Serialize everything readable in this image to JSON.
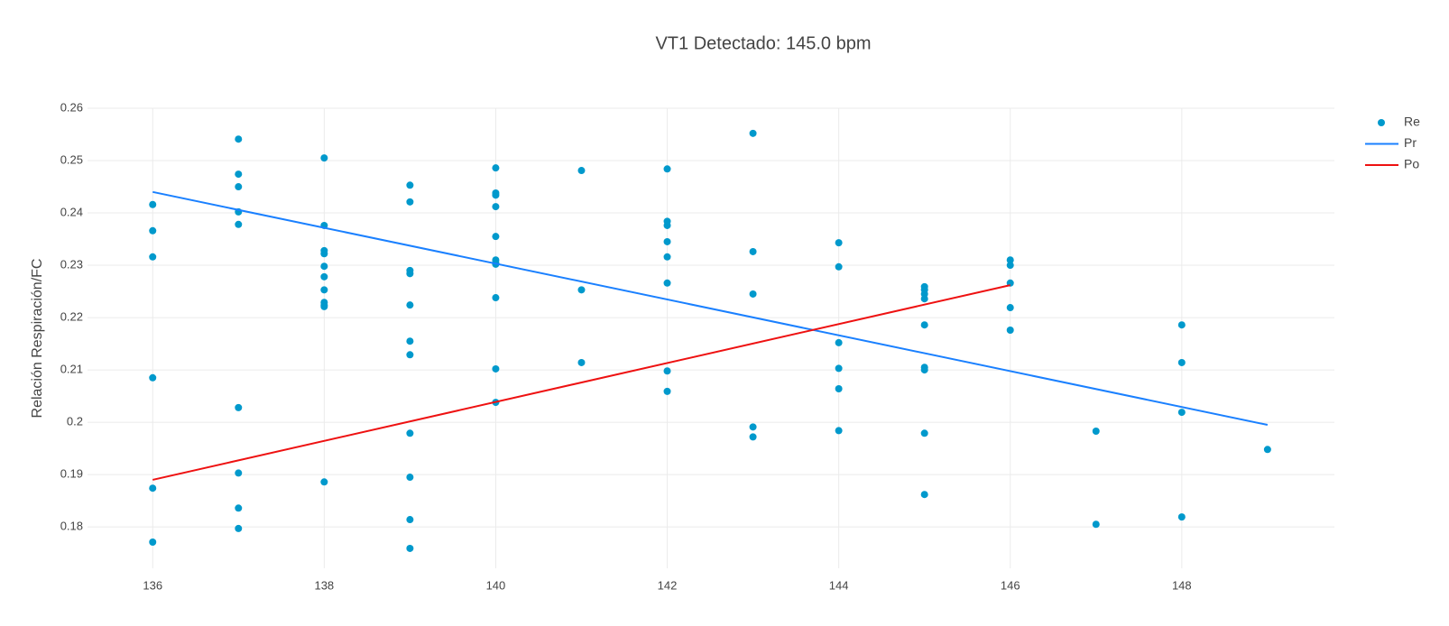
{
  "chart_data": {
    "type": "scatter",
    "title": "VT1 Detectado: 145.0 bpm",
    "ylabel": "Relación Respiración/FC",
    "xlim": [
      135.24,
      149.78
    ],
    "ylim": [
      0.1721,
      0.26
    ],
    "xticks": [
      136,
      138,
      140,
      142,
      144,
      146,
      148
    ],
    "yticks": [
      0.18,
      0.19,
      0.2,
      0.21,
      0.22,
      0.23,
      0.24,
      0.25,
      0.26
    ],
    "grid": true,
    "legend": "right",
    "series": [
      {
        "name": "Re",
        "color": "#0099cc",
        "mode": "markers",
        "x": [
          136,
          136,
          136,
          136,
          136,
          136,
          137,
          137,
          137,
          137,
          137,
          137,
          137,
          137,
          137,
          138,
          138,
          138,
          138,
          138,
          138,
          138,
          138,
          138,
          138,
          138,
          139,
          139,
          139,
          139,
          139,
          139,
          139,
          139,
          139,
          139,
          139,
          140,
          140,
          140,
          140,
          140,
          140,
          140,
          140,
          140,
          140,
          140,
          141,
          141,
          141,
          142,
          142,
          142,
          142,
          142,
          142,
          142,
          142,
          143,
          143,
          143,
          143,
          143,
          144,
          144,
          144,
          144,
          144,
          144,
          145,
          145,
          145,
          145,
          145,
          145,
          145,
          145,
          145,
          146,
          146,
          146,
          146,
          146,
          147,
          147,
          148,
          148,
          148,
          148,
          149
        ],
        "values": [
          0.2416,
          0.2366,
          0.2316,
          0.2085,
          0.1874,
          0.1771,
          0.2541,
          0.2474,
          0.245,
          0.2402,
          0.2378,
          0.2028,
          0.1903,
          0.1836,
          0.1797,
          0.2505,
          0.2376,
          0.2328,
          0.2322,
          0.2298,
          0.2278,
          0.2253,
          0.2229,
          0.2224,
          0.2221,
          0.1886,
          0.2453,
          0.2421,
          0.229,
          0.2284,
          0.2224,
          0.2155,
          0.2129,
          0.1979,
          0.1895,
          0.1814,
          0.1759,
          0.2486,
          0.2438,
          0.2434,
          0.2412,
          0.2355,
          0.231,
          0.2305,
          0.2302,
          0.2238,
          0.2102,
          0.2038,
          0.2481,
          0.2253,
          0.2114,
          0.2484,
          0.2384,
          0.2376,
          0.2345,
          0.2316,
          0.2266,
          0.2098,
          0.2059,
          0.2552,
          0.2326,
          0.2245,
          0.1991,
          0.1972,
          0.2343,
          0.2297,
          0.2152,
          0.2103,
          0.2064,
          0.1984,
          0.2259,
          0.2253,
          0.2245,
          0.2236,
          0.2186,
          0.2105,
          0.21,
          0.1979,
          0.1862,
          0.231,
          0.23,
          0.2266,
          0.2219,
          0.2176,
          0.1983,
          0.1805,
          0.2186,
          0.2114,
          0.2019,
          0.1819,
          0.1948
        ]
      },
      {
        "name": "Pr",
        "color": "#1a80ff",
        "mode": "lines",
        "x": [
          136,
          149
        ],
        "values": [
          0.244,
          0.1995
        ]
      },
      {
        "name": "Po",
        "color": "#ee1111",
        "mode": "lines",
        "x": [
          136,
          146
        ],
        "values": [
          0.189,
          0.2262
        ]
      }
    ]
  }
}
